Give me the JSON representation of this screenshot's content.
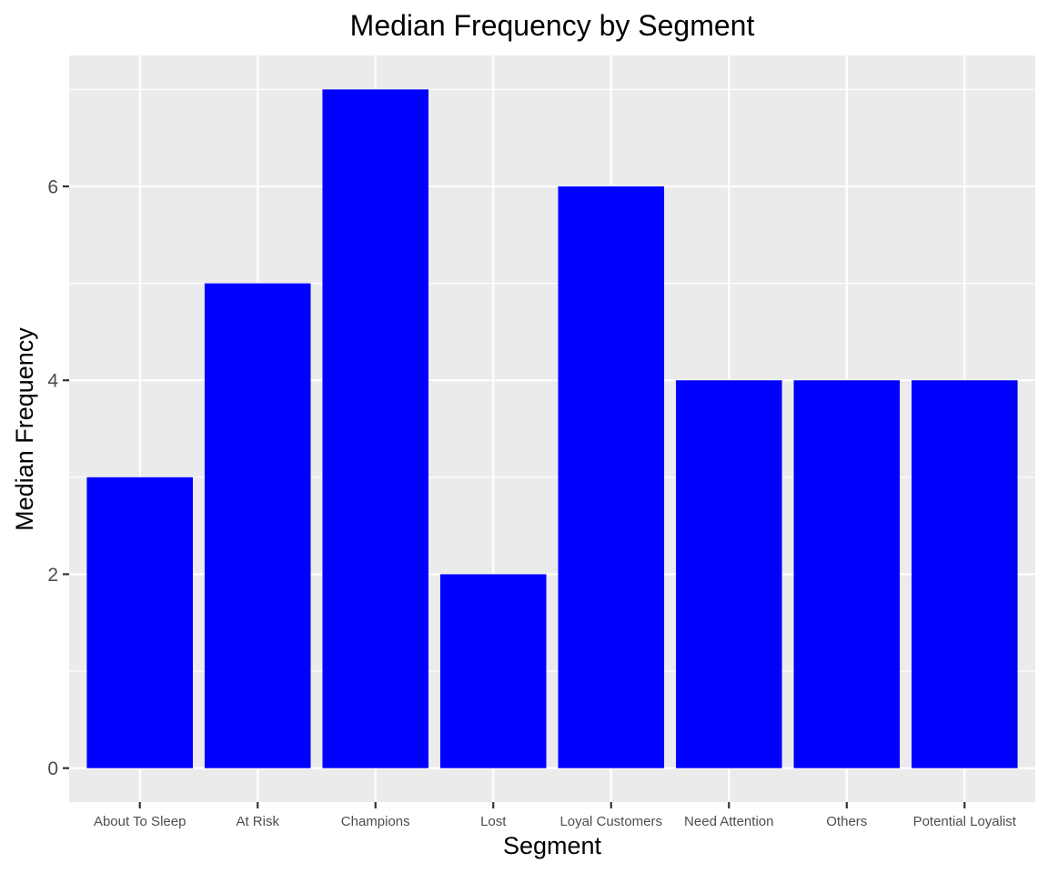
{
  "chart_data": {
    "type": "bar",
    "title": "Median Frequency by Segment",
    "xlabel": "Segment",
    "ylabel": "Median Frequency",
    "categories": [
      "About To Sleep",
      "At Risk",
      "Champions",
      "Lost",
      "Loyal Customers",
      "Need Attention",
      "Others",
      "Potential Loyalist"
    ],
    "values": [
      3,
      5,
      7,
      2,
      6,
      4,
      4,
      4
    ],
    "ylim": [
      -0.35,
      7.35
    ],
    "yticks": [
      0,
      2,
      4,
      6
    ],
    "grid": true,
    "legend": "none",
    "bar_color": "#0000ff",
    "panel_background": "#ebebeb",
    "grid_color": "#ffffff"
  }
}
